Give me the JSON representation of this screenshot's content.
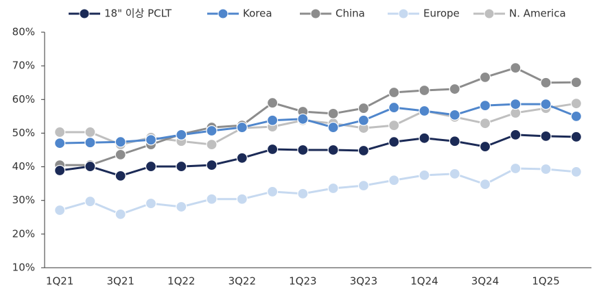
{
  "chart_data": {
    "type": "line",
    "categories": [
      "1Q21",
      null,
      "3Q21",
      null,
      "1Q22",
      null,
      "3Q22",
      null,
      "1Q23",
      null,
      "3Q23",
      null,
      "1Q24",
      null,
      "3Q24",
      null,
      "1Q25",
      null
    ],
    "series": [
      {
        "name": "18\" 이상 PCLT",
        "color": "#1b2a56",
        "values": [
          38.9,
          40.1,
          37.3,
          40.1,
          40.1,
          40.5,
          42.6,
          45.2,
          45.0,
          45.0,
          44.8,
          47.4,
          48.5,
          47.6,
          46.0,
          49.5,
          49.1,
          48.9
        ]
      },
      {
        "name": "Korea",
        "color": "#4f86cc",
        "values": [
          47.0,
          47.2,
          47.4,
          48.0,
          49.5,
          50.7,
          51.7,
          53.8,
          54.2,
          51.7,
          53.8,
          57.6,
          56.6,
          55.4,
          58.2,
          58.6,
          58.6,
          55.0
        ]
      },
      {
        "name": "China",
        "color": "#8c8c8c",
        "values": [
          40.5,
          40.5,
          43.6,
          46.6,
          49.7,
          51.7,
          52.3,
          59.0,
          56.4,
          55.8,
          57.4,
          62.1,
          62.7,
          63.1,
          66.6,
          69.4,
          65.0,
          65.1
        ]
      },
      {
        "name": "Europe",
        "color": "#c6d9f0",
        "values": [
          27.1,
          29.7,
          25.9,
          29.1,
          28.1,
          30.4,
          30.4,
          32.6,
          32.0,
          33.6,
          34.4,
          36.0,
          37.5,
          37.9,
          34.8,
          39.5,
          39.3,
          38.5
        ]
      },
      {
        "name": "N. America",
        "color": "#bfbfbf",
        "values": [
          50.3,
          50.3,
          46.6,
          48.7,
          47.6,
          46.6,
          51.5,
          51.9,
          53.8,
          52.9,
          51.5,
          52.3,
          56.6,
          54.8,
          52.9,
          56.0,
          57.4,
          58.8
        ]
      }
    ],
    "ylim": [
      10,
      80
    ],
    "yticks": [
      {
        "value": 10,
        "label": "10%"
      },
      {
        "value": 20,
        "label": "20%"
      },
      {
        "value": 30,
        "label": "30%"
      },
      {
        "value": 40,
        "label": "40%"
      },
      {
        "value": 50,
        "label": "50%"
      },
      {
        "value": 60,
        "label": "60%"
      },
      {
        "value": 70,
        "label": "70%"
      },
      {
        "value": 80,
        "label": "80%"
      }
    ],
    "legend": "top"
  }
}
